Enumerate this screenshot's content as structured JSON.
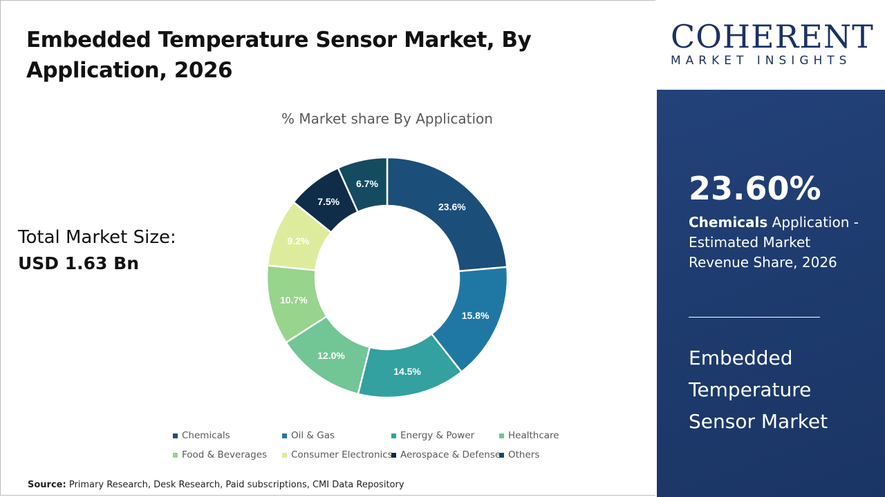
{
  "header": {
    "title": "Embedded Temperature Sensor Market, By Application, 2026"
  },
  "total": {
    "label": "Total Market Size:",
    "value": "USD 1.63 Bn"
  },
  "chart_data": {
    "type": "pie",
    "donut": true,
    "title": "% Market share By Application",
    "categories": [
      "Chemicals",
      "Oil & Gas",
      "Energy & Power",
      "Healthcare",
      "Food & Beverages",
      "Consumer Electronics",
      "Aerospace & Defense",
      "Others"
    ],
    "values": [
      23.6,
      15.8,
      14.5,
      12.0,
      10.7,
      9.2,
      7.5,
      6.7
    ],
    "labels": [
      "23.6%",
      "15.8%",
      "14.5%",
      "12.0%",
      "10.7%",
      "9.2%",
      "7.5%",
      "6.7%"
    ],
    "colors": [
      "#1c4e7a",
      "#1f78a3",
      "#33a19f",
      "#72c595",
      "#97d48c",
      "#ddec9c",
      "#0f2d48",
      "#144b60"
    ],
    "legend_position": "bottom"
  },
  "source": {
    "label": "Source:",
    "text": "Primary Research, Desk Research, Paid subscriptions, CMI Data Repository"
  },
  "logo": {
    "top": "COHERENT",
    "bottom": "MARKET INSIGHTS"
  },
  "panel": {
    "stat": "23.60%",
    "highlight": "Chemicals",
    "desc": "Application - Estimated Market Revenue Share, 2026",
    "market": "Embedded Temperature Sensor Market"
  }
}
